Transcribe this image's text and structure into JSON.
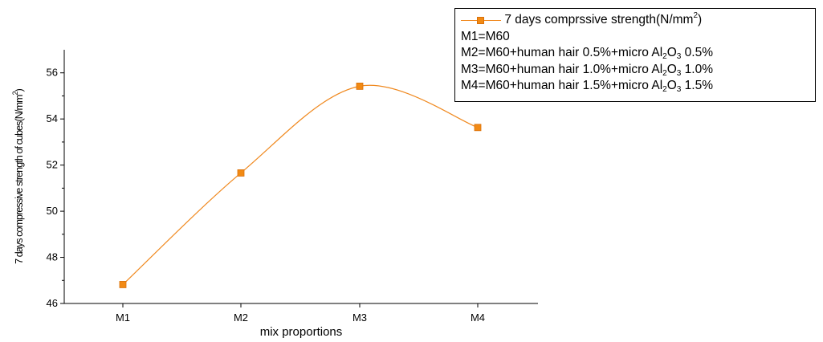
{
  "chart_data": {
    "type": "line",
    "xlabel": "mix proportions",
    "ylabel": "7 days compressive strength of cubes(N/mm",
    "ylabel_sup": "2",
    "ylabel_tail": ")",
    "categories": [
      "M1",
      "M2",
      "M3",
      "M4"
    ],
    "series": [
      {
        "name": "7 days comprssive strength(N/mm²)",
        "values": [
          46.82,
          51.66,
          55.42,
          53.63
        ],
        "color": "#f28a14"
      }
    ],
    "ylim": [
      46,
      57
    ],
    "yticks": [
      46,
      48,
      50,
      52,
      54,
      56
    ],
    "grid": false,
    "legend_position": "top-right"
  },
  "legend": {
    "series_label": "7 days comprssive strength(N/mm",
    "series_label_sup": "2",
    "series_label_tail": ")",
    "m1": "M1=M60",
    "m2": {
      "prefix": "M2=M60+human hair 0.5%+micro Al",
      "sub1": "2",
      "mid": "O",
      "sub2": "3",
      "tail": " 0.5%"
    },
    "m3": {
      "prefix": "M3=M60+human hair 1.0%+micro Al",
      "sub1": "2",
      "mid": "O",
      "sub2": "3",
      "tail": " 1.0%"
    },
    "m4": {
      "prefix": "M4=M60+human hair 1.5%+micro Al",
      "sub1": "2",
      "mid": "O",
      "sub2": "3",
      "tail": " 1.5%"
    }
  }
}
